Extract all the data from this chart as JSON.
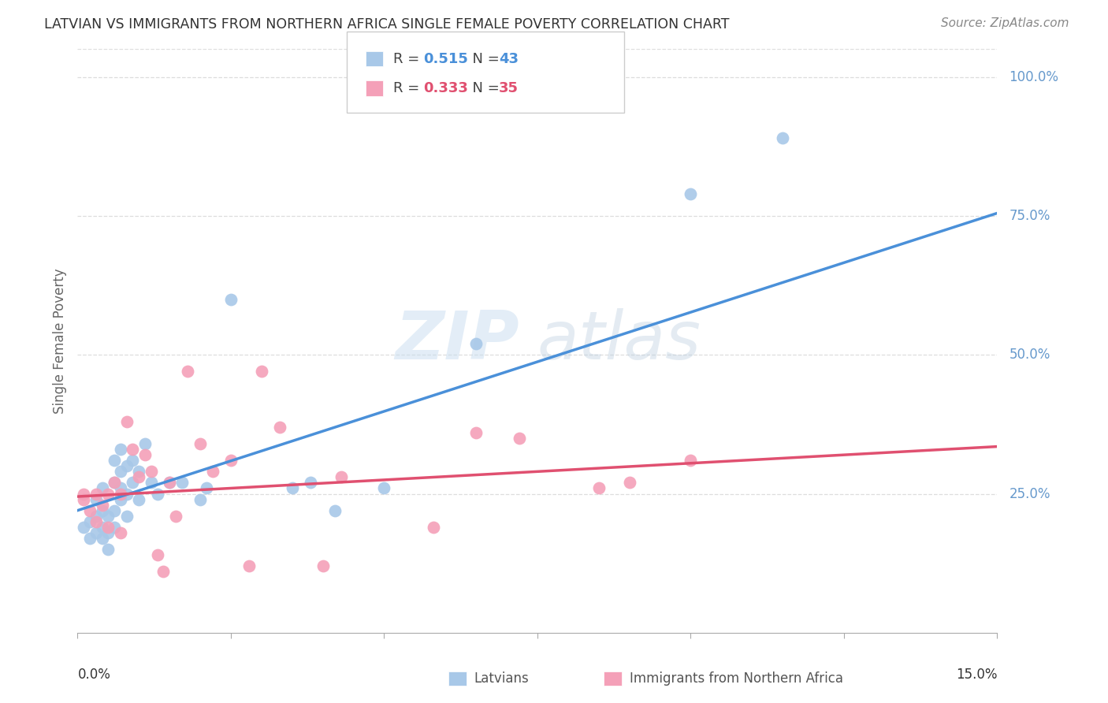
{
  "title": "LATVIAN VS IMMIGRANTS FROM NORTHERN AFRICA SINGLE FEMALE POVERTY CORRELATION CHART",
  "source": "Source: ZipAtlas.com",
  "ylabel": "Single Female Poverty",
  "right_ytick_vals": [
    1.0,
    0.75,
    0.5,
    0.25
  ],
  "right_ytick_labels": [
    "100.0%",
    "75.0%",
    "50.0%",
    "25.0%"
  ],
  "xmin": 0.0,
  "xmax": 0.15,
  "ymin": 0.0,
  "ymax": 1.05,
  "blue_color": "#a8c8e8",
  "blue_line_color": "#4a90d9",
  "pink_color": "#f4a0b8",
  "pink_line_color": "#e05070",
  "latvians_label": "Latvians",
  "immigrants_label": "Immigrants from Northern Africa",
  "blue_scatter_x": [
    0.001,
    0.002,
    0.002,
    0.003,
    0.003,
    0.003,
    0.004,
    0.004,
    0.004,
    0.004,
    0.005,
    0.005,
    0.005,
    0.006,
    0.006,
    0.006,
    0.006,
    0.007,
    0.007,
    0.007,
    0.007,
    0.008,
    0.008,
    0.008,
    0.009,
    0.009,
    0.01,
    0.01,
    0.011,
    0.012,
    0.013,
    0.015,
    0.017,
    0.02,
    0.021,
    0.025,
    0.035,
    0.038,
    0.042,
    0.05,
    0.065,
    0.1,
    0.115
  ],
  "blue_scatter_y": [
    0.19,
    0.17,
    0.2,
    0.18,
    0.21,
    0.24,
    0.17,
    0.19,
    0.22,
    0.26,
    0.15,
    0.18,
    0.21,
    0.19,
    0.22,
    0.27,
    0.31,
    0.24,
    0.26,
    0.29,
    0.33,
    0.21,
    0.25,
    0.3,
    0.27,
    0.31,
    0.24,
    0.29,
    0.34,
    0.27,
    0.25,
    0.27,
    0.27,
    0.24,
    0.26,
    0.6,
    0.26,
    0.27,
    0.22,
    0.26,
    0.52,
    0.79,
    0.89
  ],
  "pink_scatter_x": [
    0.001,
    0.001,
    0.002,
    0.003,
    0.003,
    0.004,
    0.005,
    0.005,
    0.006,
    0.007,
    0.007,
    0.008,
    0.009,
    0.01,
    0.011,
    0.012,
    0.013,
    0.014,
    0.015,
    0.016,
    0.018,
    0.02,
    0.022,
    0.025,
    0.028,
    0.03,
    0.033,
    0.04,
    0.043,
    0.058,
    0.065,
    0.072,
    0.085,
    0.09,
    0.1
  ],
  "pink_scatter_y": [
    0.25,
    0.24,
    0.22,
    0.2,
    0.25,
    0.23,
    0.25,
    0.19,
    0.27,
    0.25,
    0.18,
    0.38,
    0.33,
    0.28,
    0.32,
    0.29,
    0.14,
    0.11,
    0.27,
    0.21,
    0.47,
    0.34,
    0.29,
    0.31,
    0.12,
    0.47,
    0.37,
    0.12,
    0.28,
    0.19,
    0.36,
    0.35,
    0.26,
    0.27,
    0.31
  ],
  "blue_trendline_x": [
    0.0,
    0.15
  ],
  "blue_trendline_y": [
    0.22,
    0.755
  ],
  "pink_trendline_x": [
    0.0,
    0.15
  ],
  "pink_trendline_y": [
    0.245,
    0.335
  ],
  "title_color": "#333333",
  "source_color": "#888888",
  "axis_label_color": "#6699cc",
  "grid_color": "#dddddd",
  "background_color": "#ffffff",
  "legend_r1": "0.515",
  "legend_n1": "43",
  "legend_r2": "0.333",
  "legend_n2": "35"
}
